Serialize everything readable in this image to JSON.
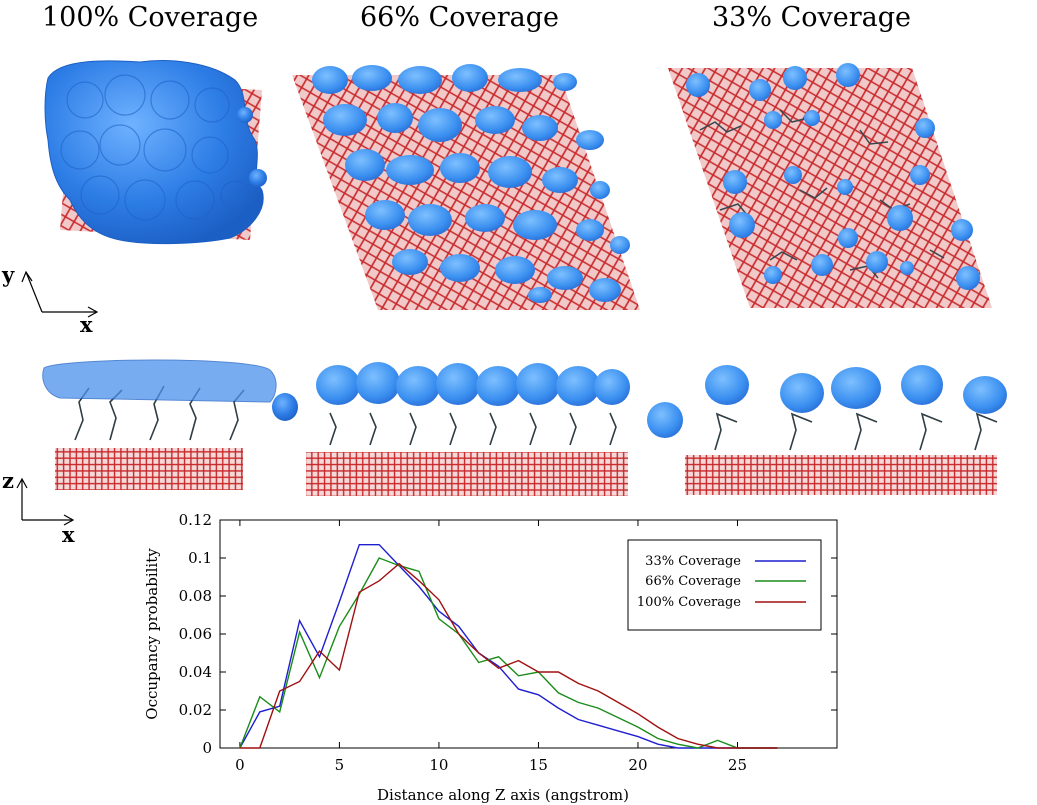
{
  "panels": {
    "titles": [
      "100% Coverage",
      "66% Coverage",
      "33% Coverage"
    ],
    "top_axes": {
      "vertical": "y",
      "horizontal": "x"
    },
    "side_axes": {
      "vertical": "z",
      "horizontal": "x"
    },
    "colors": {
      "surface": "#d03a3a",
      "water_density": "#3a86e8",
      "molecule": "#3c4a4f"
    }
  },
  "chart_data": {
    "type": "line",
    "xlabel": "Distance along Z axis (angstrom)",
    "ylabel": "Occupancy probability",
    "xlim": [
      -1,
      30
    ],
    "ylim": [
      0,
      0.12
    ],
    "xticks": [
      0,
      5,
      10,
      15,
      20,
      25
    ],
    "yticks": [
      0,
      0.02,
      0.04,
      0.06,
      0.08,
      0.1,
      0.12
    ],
    "ytick_labels": [
      "0",
      "0.02",
      "0.04",
      "0.06",
      "0.08",
      "0.1",
      "0.12"
    ],
    "legend_position": "top-right",
    "grid": false,
    "series": [
      {
        "name": "33% Coverage",
        "color": "#1f1fd0",
        "x": [
          0,
          1,
          2,
          3,
          4,
          5,
          6,
          7,
          8,
          9,
          10,
          11,
          12,
          13,
          14,
          15,
          16,
          17,
          18,
          19,
          20,
          21,
          22,
          23,
          24,
          25,
          26,
          27
        ],
        "y": [
          0,
          0.019,
          0.022,
          0.067,
          0.048,
          0.077,
          0.107,
          0.107,
          0.096,
          0.085,
          0.072,
          0.064,
          0.05,
          0.043,
          0.031,
          0.028,
          0.021,
          0.015,
          0.012,
          0.009,
          0.006,
          0.002,
          0,
          0,
          0,
          0,
          0,
          0
        ]
      },
      {
        "name": "66% Coverage",
        "color": "#1a8c1a",
        "x": [
          0,
          1,
          2,
          3,
          4,
          5,
          6,
          7,
          8,
          9,
          10,
          11,
          12,
          13,
          14,
          15,
          16,
          17,
          18,
          19,
          20,
          21,
          22,
          23,
          24,
          25,
          26,
          27
        ],
        "y": [
          0,
          0.027,
          0.019,
          0.061,
          0.037,
          0.064,
          0.081,
          0.1,
          0.096,
          0.093,
          0.068,
          0.06,
          0.045,
          0.048,
          0.038,
          0.04,
          0.029,
          0.024,
          0.021,
          0.016,
          0.011,
          0.005,
          0.002,
          0,
          0.004,
          0,
          0,
          0
        ]
      },
      {
        "name": "100% Coverage",
        "color": "#a01010",
        "x": [
          0,
          1,
          2,
          3,
          4,
          5,
          6,
          7,
          8,
          9,
          10,
          11,
          12,
          13,
          14,
          15,
          16,
          17,
          18,
          19,
          20,
          21,
          22,
          23,
          24,
          25,
          26,
          27
        ],
        "y": [
          0,
          0,
          0.03,
          0.035,
          0.051,
          0.041,
          0.082,
          0.088,
          0.097,
          0.088,
          0.078,
          0.06,
          0.05,
          0.042,
          0.046,
          0.04,
          0.04,
          0.034,
          0.03,
          0.024,
          0.018,
          0.011,
          0.005,
          0.002,
          0,
          0,
          0,
          0
        ]
      }
    ]
  }
}
